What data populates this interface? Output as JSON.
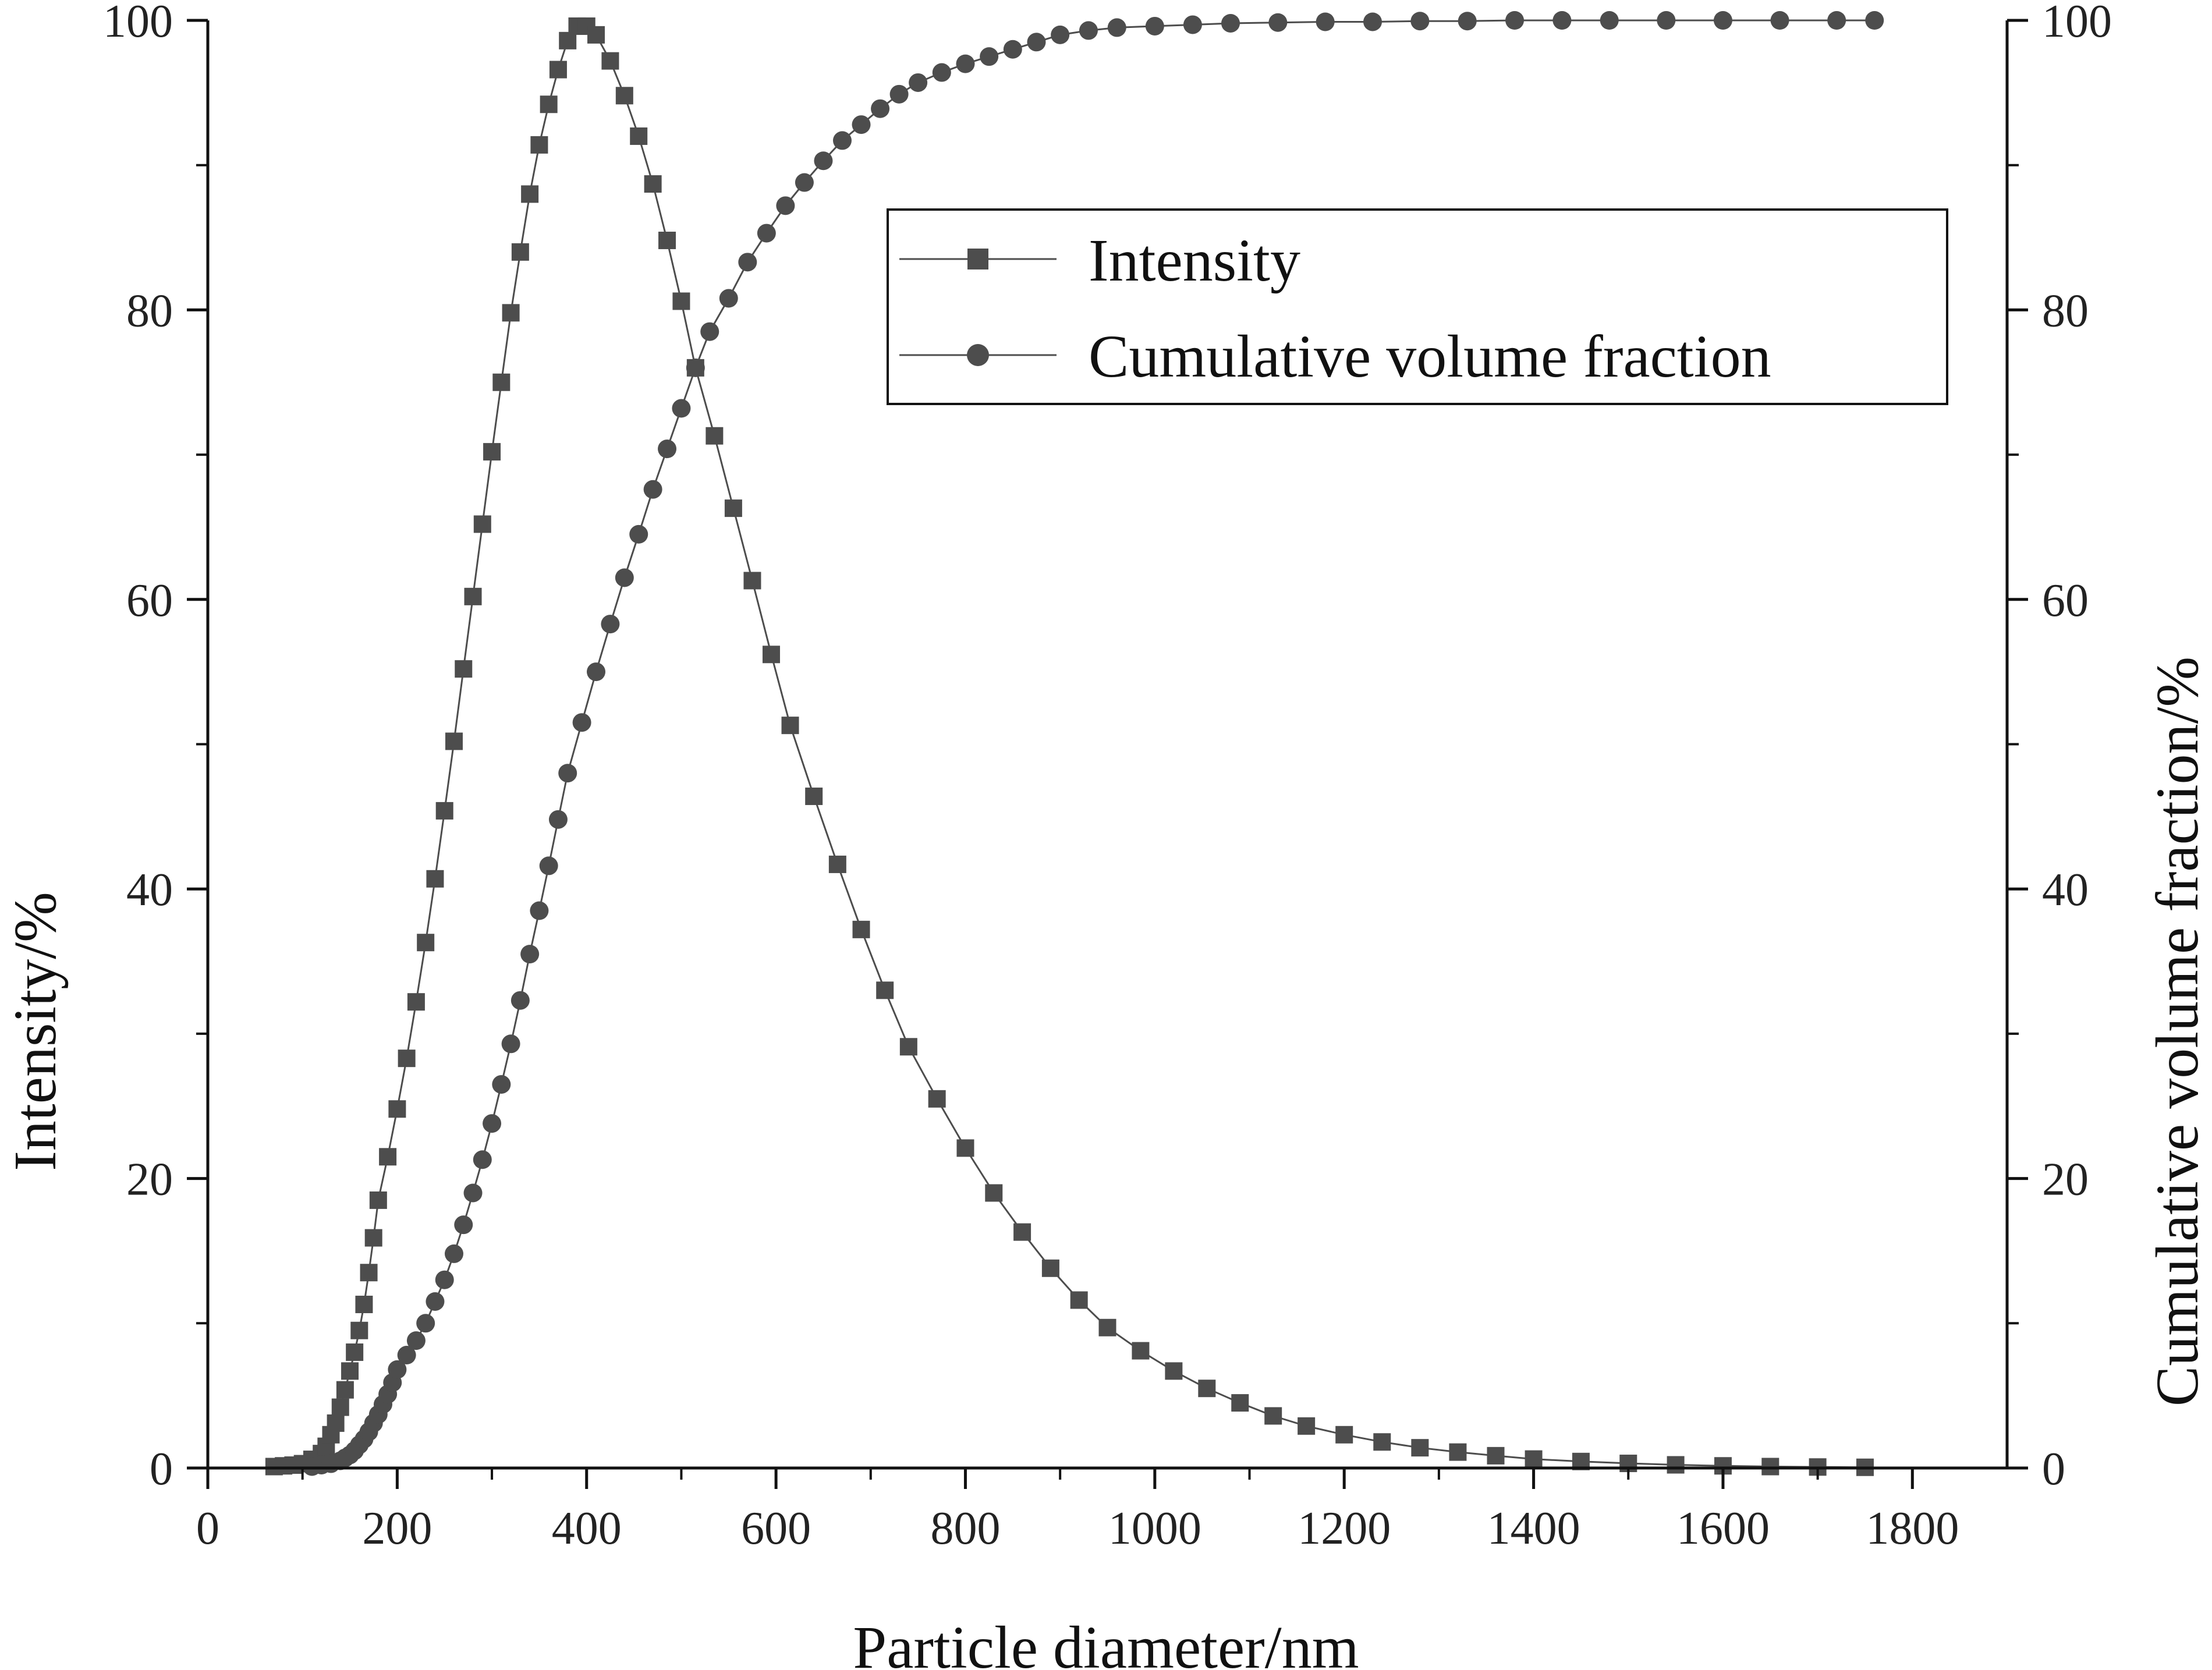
{
  "chart_data": {
    "type": "line",
    "xlabel": "Particle diameter/nm",
    "ylabel_left": "Intensity/%",
    "ylabel_right": "Cumulative volume fraction/%",
    "xlim": [
      0,
      1900
    ],
    "ylim_left": [
      0,
      100
    ],
    "ylim_right": [
      0,
      100
    ],
    "x_ticks": [
      "0",
      "200",
      "400",
      "600",
      "800",
      "1000",
      "1200",
      "1400",
      "1600",
      "1800"
    ],
    "y_ticks_left": [
      "0",
      "20",
      "40",
      "60",
      "80",
      "100"
    ],
    "y_ticks_right": [
      "0",
      "20",
      "40",
      "60",
      "80",
      "100"
    ],
    "legend_position": "upper-right",
    "grid": false,
    "series": [
      {
        "name": "Intensity",
        "axis": "left",
        "marker": "square",
        "color": "#4d4d4d",
        "x": [
          70,
          80,
          90,
          100,
          110,
          120,
          125,
          130,
          135,
          140,
          145,
          150,
          155,
          160,
          165,
          170,
          175,
          180,
          190,
          200,
          210,
          220,
          230,
          240,
          250,
          260,
          270,
          280,
          290,
          300,
          310,
          320,
          330,
          340,
          350,
          360,
          370,
          380,
          390,
          400,
          410,
          425,
          440,
          455,
          470,
          485,
          500,
          515,
          535,
          555,
          575,
          595,
          615,
          640,
          665,
          690,
          715,
          740,
          770,
          800,
          830,
          860,
          890,
          920,
          950,
          985,
          1020,
          1055,
          1090,
          1125,
          1160,
          1200,
          1240,
          1280,
          1320,
          1360,
          1400,
          1450,
          1500,
          1550,
          1600,
          1650,
          1700,
          1750
        ],
        "values": [
          0.1,
          0.15,
          0.2,
          0.3,
          0.6,
          1.0,
          1.5,
          2.3,
          3.1,
          4.2,
          5.4,
          6.7,
          8.0,
          9.5,
          11.3,
          13.5,
          15.9,
          18.5,
          21.5,
          24.8,
          28.3,
          32.2,
          36.3,
          40.7,
          45.4,
          50.2,
          55.2,
          60.2,
          65.2,
          70.2,
          75.0,
          79.8,
          84.0,
          88.0,
          91.4,
          94.2,
          96.6,
          98.6,
          99.6,
          99.6,
          99.0,
          97.2,
          94.8,
          92.0,
          88.7,
          84.8,
          80.6,
          76.0,
          71.3,
          66.3,
          61.3,
          56.2,
          51.3,
          46.4,
          41.7,
          37.2,
          33.0,
          29.1,
          25.5,
          22.1,
          19.0,
          16.3,
          13.8,
          11.6,
          9.7,
          8.1,
          6.7,
          5.5,
          4.5,
          3.6,
          2.9,
          2.3,
          1.8,
          1.4,
          1.1,
          0.85,
          0.62,
          0.45,
          0.32,
          0.22,
          0.15,
          0.1,
          0.07,
          0.05
        ]
      },
      {
        "name": "Cumulative volume fraction",
        "axis": "right",
        "marker": "circle",
        "color": "#4d4d4d",
        "x": [
          110,
          120,
          130,
          140,
          145,
          150,
          155,
          160,
          165,
          170,
          175,
          180,
          185,
          190,
          195,
          200,
          210,
          220,
          230,
          240,
          250,
          260,
          270,
          280,
          290,
          300,
          310,
          320,
          330,
          340,
          350,
          360,
          370,
          380,
          395,
          410,
          425,
          440,
          455,
          470,
          485,
          500,
          515,
          530,
          550,
          570,
          590,
          610,
          630,
          650,
          670,
          690,
          710,
          730,
          750,
          775,
          800,
          825,
          850,
          875,
          900,
          930,
          960,
          1000,
          1040,
          1080,
          1130,
          1180,
          1230,
          1280,
          1330,
          1380,
          1430,
          1480,
          1540,
          1600,
          1660,
          1720,
          1760
        ],
        "values": [
          0.1,
          0.2,
          0.3,
          0.5,
          0.7,
          0.9,
          1.2,
          1.6,
          2.0,
          2.5,
          3.1,
          3.7,
          4.4,
          5.1,
          5.9,
          6.8,
          7.8,
          8.8,
          10.0,
          11.5,
          13.0,
          14.8,
          16.8,
          19.0,
          21.3,
          23.8,
          26.5,
          29.3,
          32.3,
          35.5,
          38.5,
          41.6,
          44.8,
          48.0,
          51.5,
          55.0,
          58.3,
          61.5,
          64.5,
          67.6,
          70.4,
          73.2,
          76.0,
          78.5,
          80.8,
          83.3,
          85.3,
          87.2,
          88.8,
          90.3,
          91.7,
          92.8,
          93.9,
          94.9,
          95.7,
          96.4,
          97.0,
          97.5,
          98.0,
          98.5,
          99.0,
          99.3,
          99.5,
          99.6,
          99.7,
          99.8,
          99.85,
          99.9,
          99.9,
          99.95,
          99.95,
          100,
          100,
          100,
          100,
          100,
          100,
          100,
          100
        ]
      }
    ]
  }
}
